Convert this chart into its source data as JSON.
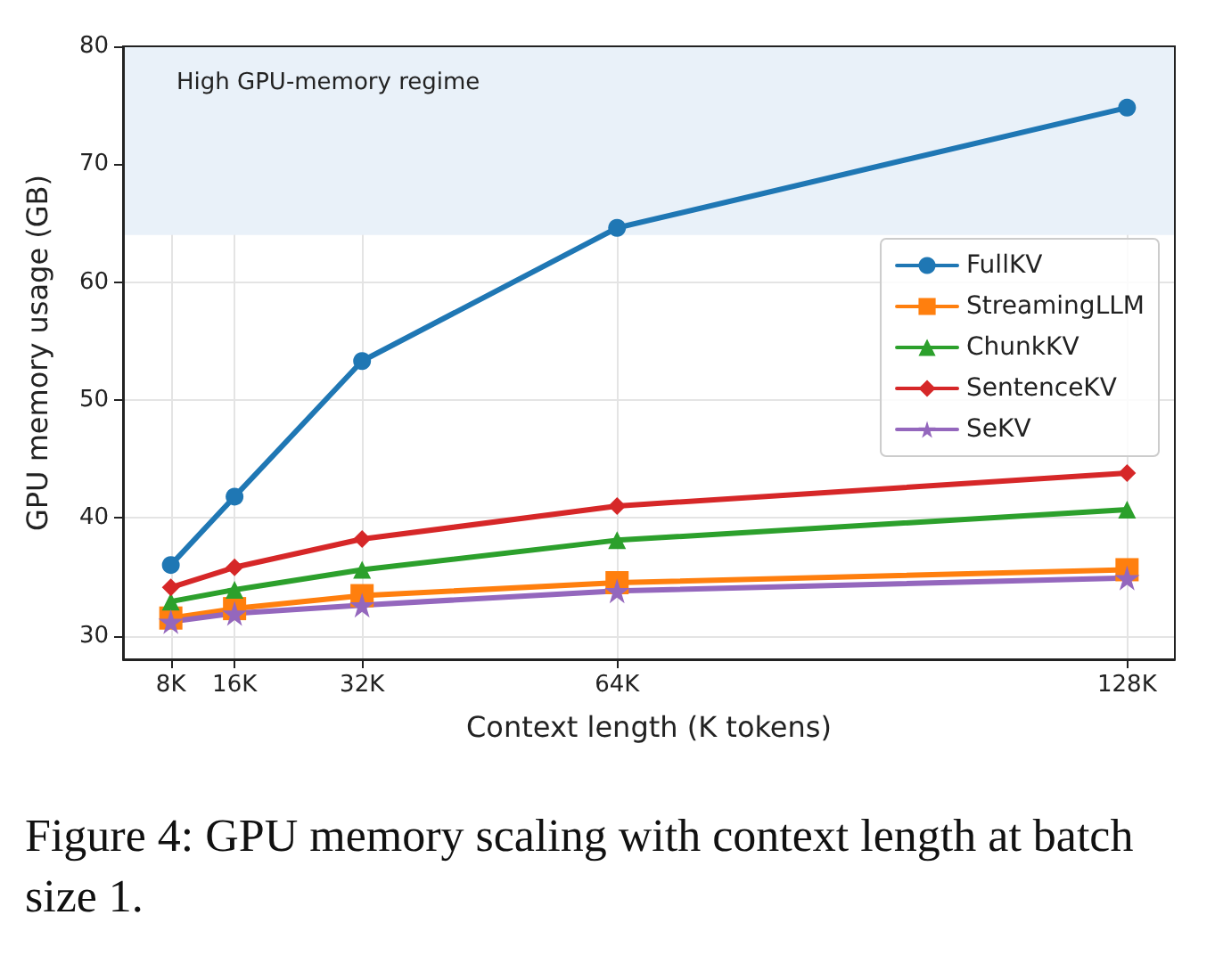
{
  "chart_data": {
    "type": "line",
    "xlabel": "Context length (K tokens)",
    "ylabel": "GPU memory usage (GB)",
    "x": [
      8,
      16,
      32,
      64,
      128
    ],
    "xlim": [
      2,
      134
    ],
    "xticks": [
      {
        "value": 8,
        "label": "8K"
      },
      {
        "value": 16,
        "label": "16K"
      },
      {
        "value": 32,
        "label": "32K"
      },
      {
        "value": 64,
        "label": "64K"
      },
      {
        "value": 128,
        "label": "128K"
      }
    ],
    "ylim": [
      28,
      80
    ],
    "yticks": [
      30,
      40,
      50,
      60,
      70,
      80
    ],
    "series": [
      {
        "name": "FullKV",
        "color": "#1f77b4",
        "marker": "circle",
        "values": [
          36.0,
          41.8,
          53.3,
          64.6,
          74.8
        ]
      },
      {
        "name": "StreamingLLM",
        "color": "#ff7f0e",
        "marker": "square",
        "values": [
          31.5,
          32.3,
          33.4,
          34.5,
          35.6
        ]
      },
      {
        "name": "ChunkKV",
        "color": "#2ca02c",
        "marker": "triangle",
        "values": [
          32.9,
          33.9,
          35.6,
          38.1,
          40.7
        ]
      },
      {
        "name": "SentenceKV",
        "color": "#d62728",
        "marker": "diamond",
        "values": [
          34.1,
          35.8,
          38.2,
          41.0,
          43.8
        ]
      },
      {
        "name": "SeKV",
        "color": "#9467bd",
        "marker": "star",
        "values": [
          31.2,
          31.9,
          32.6,
          33.8,
          34.9
        ]
      }
    ],
    "bands": [
      {
        "axis": "y",
        "from": 64,
        "to": 80,
        "label": "High GPU-memory regime",
        "color": "#e9f1f9"
      }
    ],
    "grid": true,
    "legend": "right",
    "line_style": "solid",
    "annotations": [
      "Figure 4: GPU memory scaling with context length at batch size 1."
    ]
  }
}
